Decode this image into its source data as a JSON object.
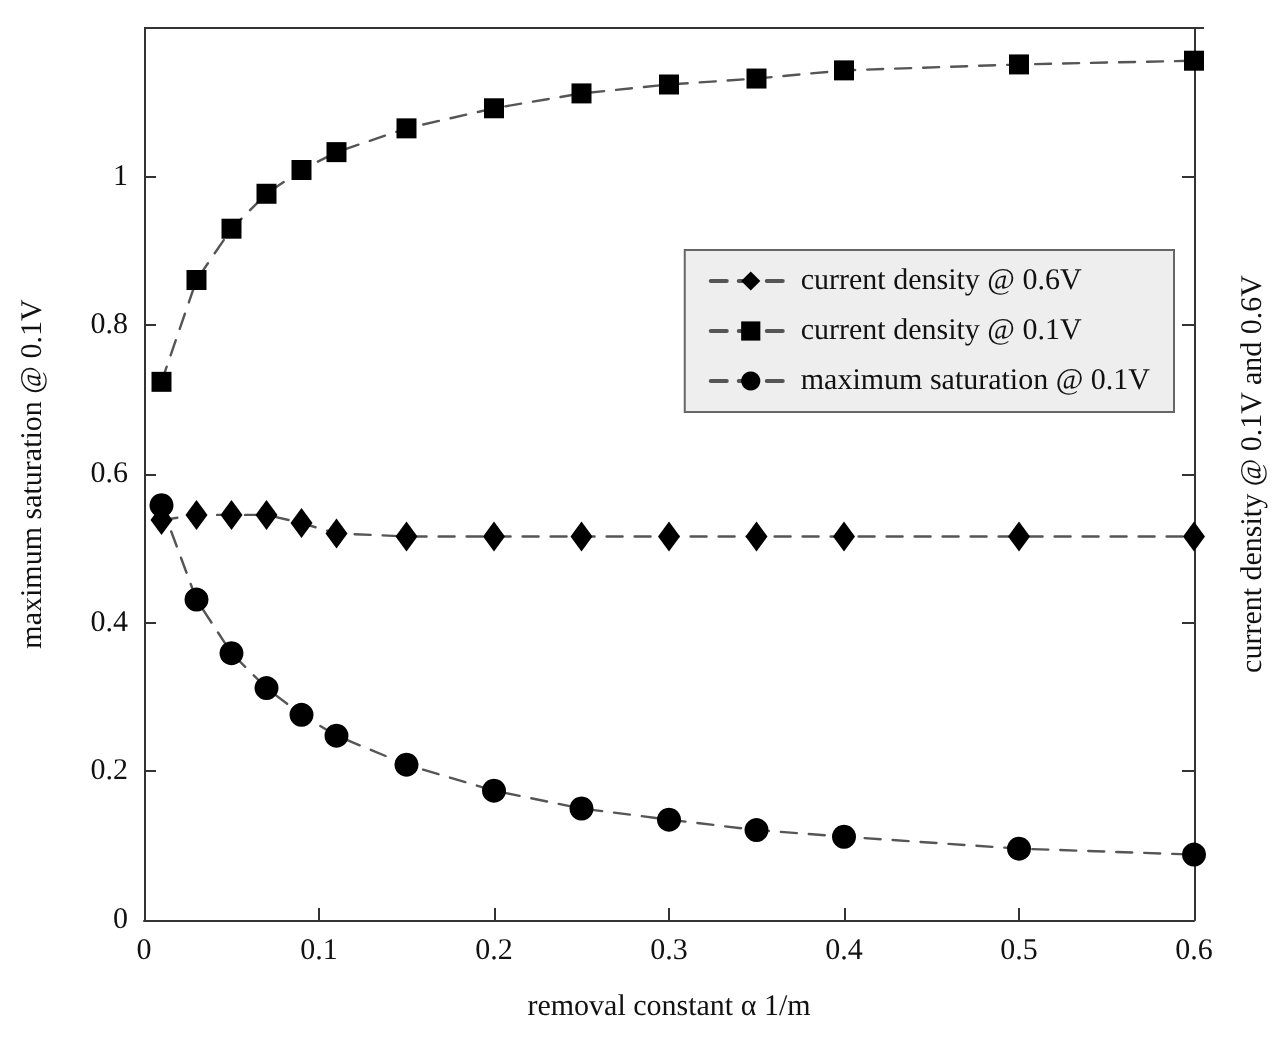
{
  "chart_data": {
    "type": "line",
    "xlabel": "removal constant α 1/m",
    "ylabel": "maximum saturation @ 0.1V",
    "y2label": "current density @ 0.1V and 0.6V",
    "x": [
      0.01,
      0.03,
      0.05,
      0.07,
      0.09,
      0.11,
      0.15,
      0.2,
      0.25,
      0.3,
      0.35,
      0.4,
      0.5,
      0.6
    ],
    "series": [
      {
        "name": "current density @ 0.6V",
        "color": "#000000",
        "marker": "diamond",
        "values": [
          0.538,
          0.545,
          0.545,
          0.545,
          0.534,
          0.52,
          0.516,
          0.516,
          0.516,
          0.516,
          0.516,
          0.516,
          0.516,
          0.516
        ]
      },
      {
        "name": "current density @ 0.1V",
        "color": "#000000",
        "marker": "square",
        "values": [
          0.724,
          0.861,
          0.93,
          0.977,
          1.009,
          1.033,
          1.065,
          1.092,
          1.112,
          1.124,
          1.132,
          1.143,
          1.151,
          1.156
        ]
      },
      {
        "name": "maximum saturation @ 0.1V",
        "color": "#000000",
        "marker": "circle",
        "values": [
          0.558,
          0.431,
          0.359,
          0.312,
          0.276,
          0.248,
          0.209,
          0.174,
          0.15,
          0.135,
          0.121,
          0.112,
          0.096,
          0.088
        ]
      }
    ],
    "xlim": [
      0,
      0.6
    ],
    "xticks": [
      0,
      0.1,
      0.2,
      0.3,
      0.4,
      0.5,
      0.6
    ],
    "ylim": [
      0,
      1.2
    ],
    "yticks": [
      0,
      0.2,
      0.4,
      0.6,
      0.8,
      1
    ],
    "line_style": "dashed",
    "grid": false,
    "legend": "right"
  }
}
